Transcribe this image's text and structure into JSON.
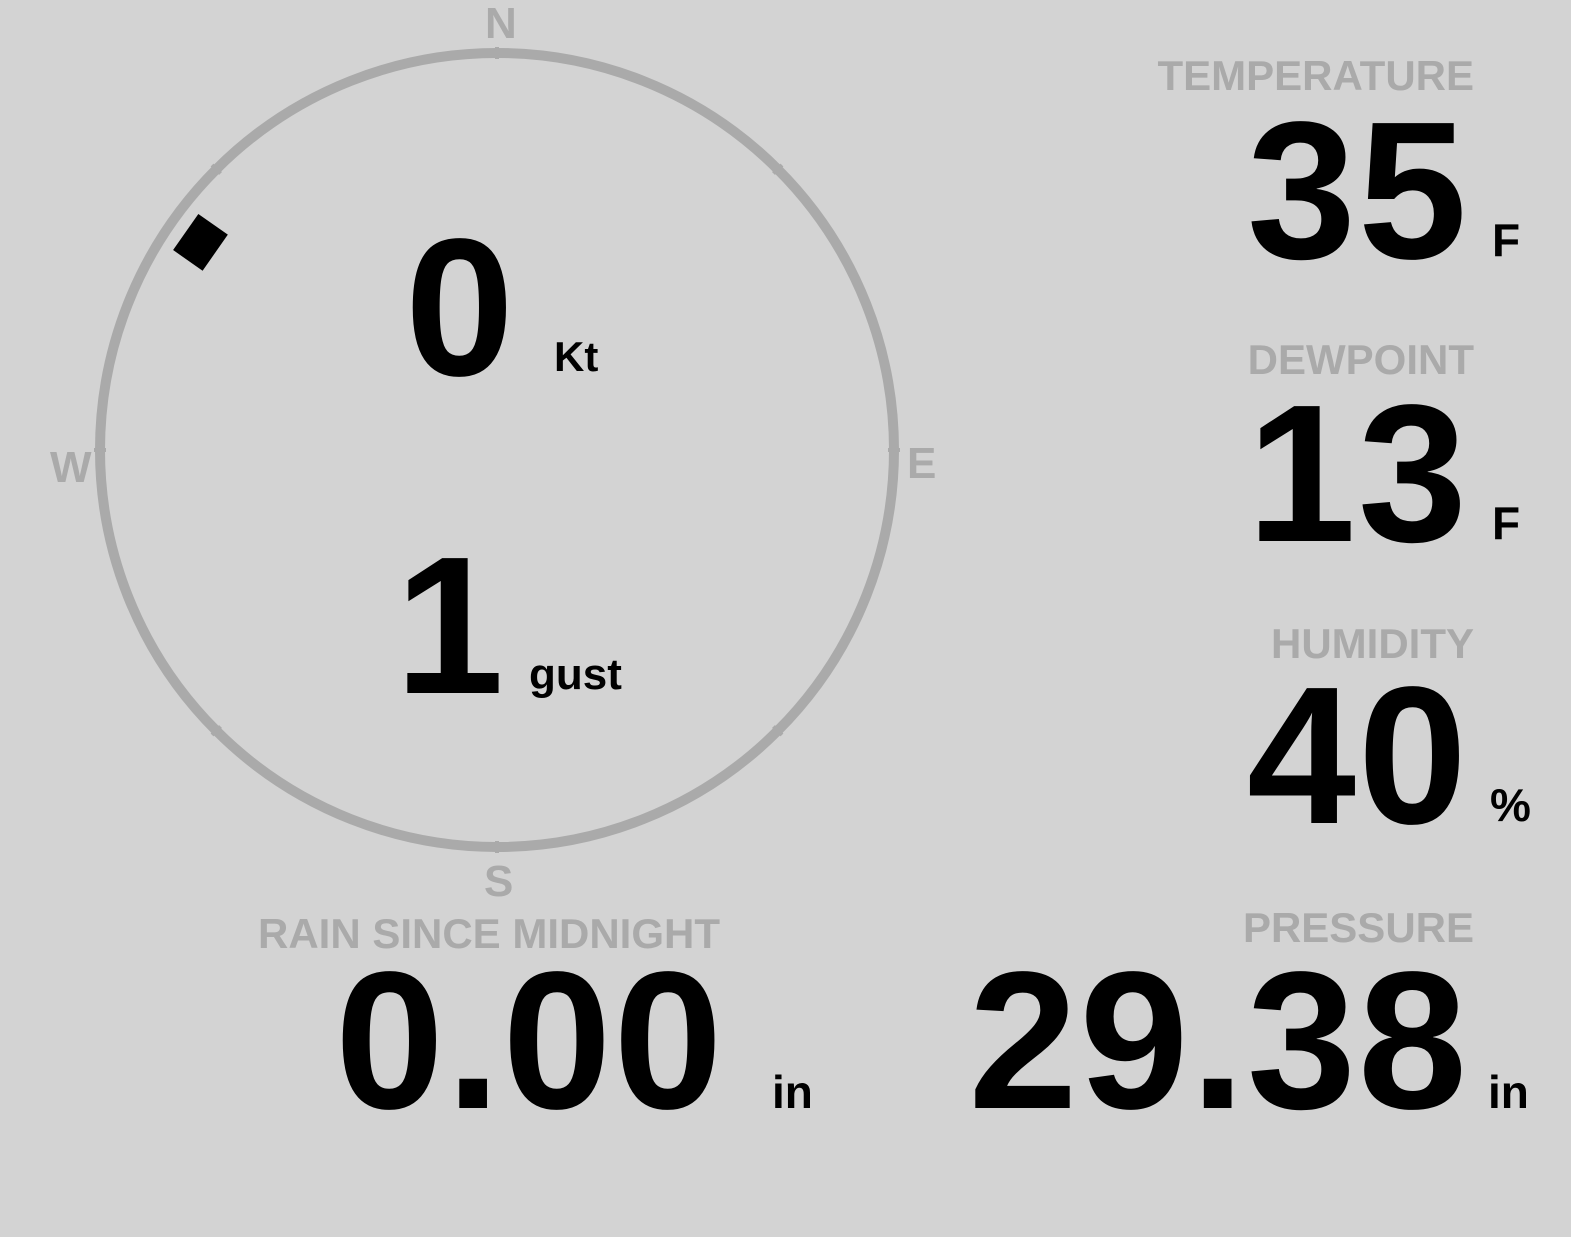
{
  "wind": {
    "speed": "0",
    "speed_unit": "Kt",
    "gust": "1",
    "gust_unit": "gust",
    "direction_deg": 305,
    "cardinals": {
      "n": "N",
      "s": "S",
      "e": "E",
      "w": "W"
    }
  },
  "temperature": {
    "label": "TEMPERATURE",
    "value": "35",
    "unit": "F"
  },
  "dewpoint": {
    "label": "DEWPOINT",
    "value": "13",
    "unit": "F"
  },
  "humidity": {
    "label": "HUMIDITY",
    "value": "40",
    "unit": "%"
  },
  "rain": {
    "label": "RAIN SINCE MIDNIGHT",
    "value": "0.00",
    "unit": "in"
  },
  "pressure": {
    "label": "PRESSURE",
    "value": "29.38",
    "unit": "in"
  },
  "colors": {
    "background": "#d3d3d3",
    "label": "#aaaaaa",
    "value": "#000000"
  }
}
